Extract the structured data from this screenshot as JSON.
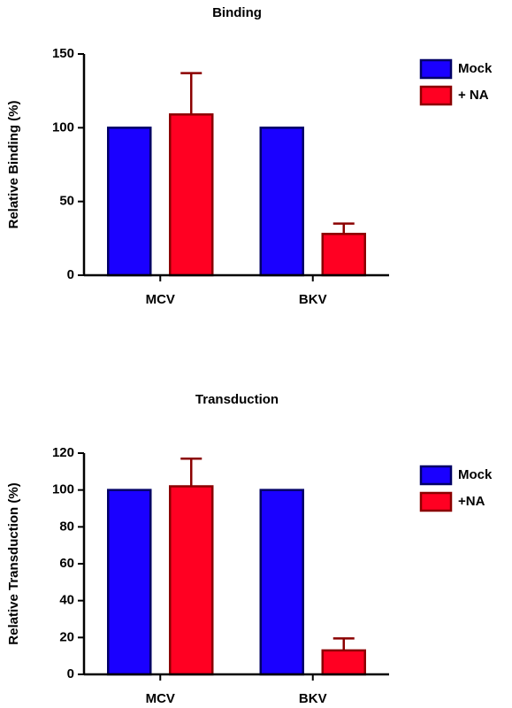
{
  "chart_data": [
    {
      "type": "bar",
      "title": "Binding",
      "ylabel": "Relative Binding (%)",
      "categories": [
        "MCV",
        "BKV"
      ],
      "series": [
        {
          "name": "Mock",
          "color": "#1a00ff",
          "values": [
            100,
            100
          ]
        },
        {
          "name": "+ NA",
          "color": "#ff0022",
          "values": [
            109,
            28
          ],
          "errors": [
            28,
            7
          ]
        }
      ],
      "ylim": [
        0,
        150
      ],
      "yticks": [
        0,
        50,
        100,
        150
      ]
    },
    {
      "type": "bar",
      "title": "Transduction",
      "ylabel": "Relative Transduction (%)",
      "categories": [
        "MCV",
        "BKV"
      ],
      "series": [
        {
          "name": "Mock",
          "color": "#1a00ff",
          "values": [
            100,
            100
          ]
        },
        {
          "name": "+NA",
          "color": "#ff0022",
          "values": [
            102,
            13
          ],
          "errors": [
            15,
            6.5
          ]
        }
      ],
      "ylim": [
        0,
        120
      ],
      "yticks": [
        0,
        20,
        40,
        60,
        80,
        100,
        120
      ]
    }
  ]
}
